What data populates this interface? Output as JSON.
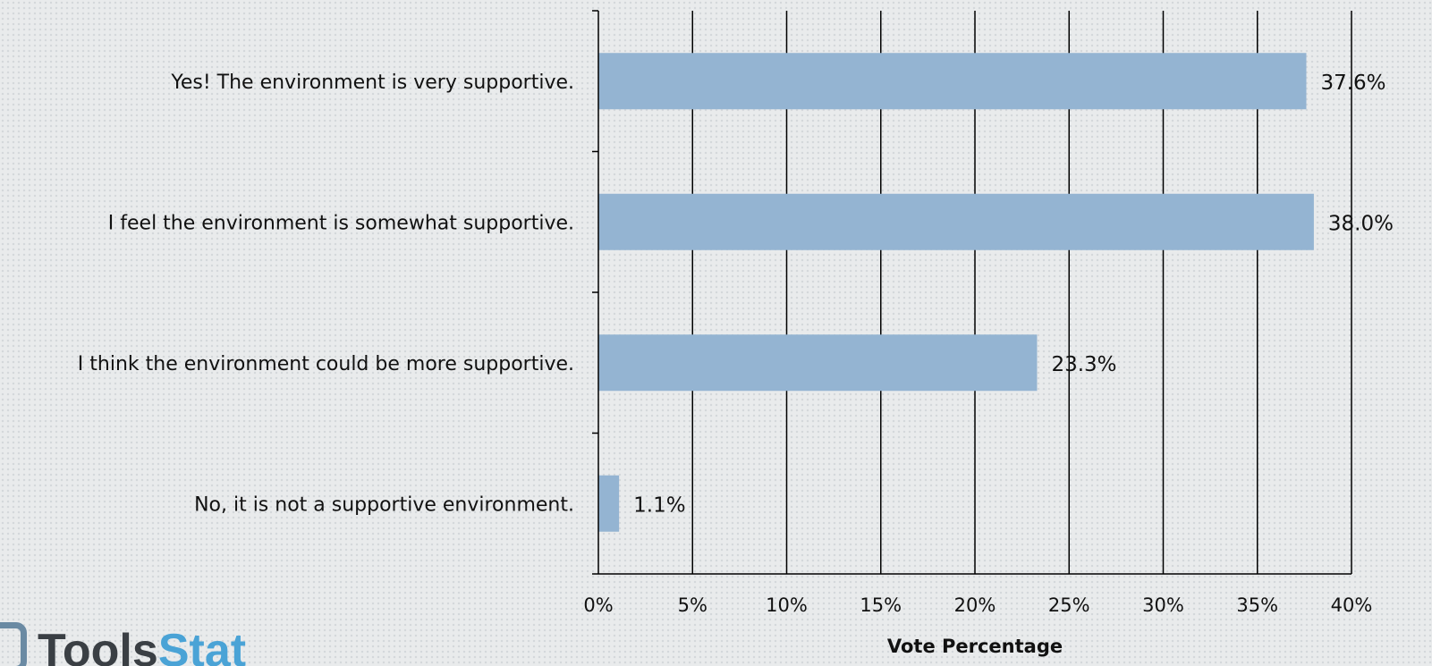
{
  "chart_data": {
    "type": "bar",
    "orientation": "horizontal",
    "categories": [
      "Yes! The environment is very supportive.",
      "I feel the environment is somewhat supportive.",
      "I think the environment could be more supportive.",
      "No, it is not a supportive environment."
    ],
    "values": [
      37.6,
      38.0,
      23.3,
      1.1
    ],
    "data_labels": [
      "37.6%",
      "38.0%",
      "23.3%",
      "1.1%"
    ],
    "xlabel": "Vote Percentage",
    "xlim": [
      0,
      40
    ],
    "xticks": [
      0,
      5,
      10,
      15,
      20,
      25,
      30,
      35,
      40
    ],
    "xtick_labels": [
      "0%",
      "5%",
      "10%",
      "15%",
      "20%",
      "25%",
      "30%",
      "35%",
      "40%"
    ],
    "grid": "vertical",
    "bar_color": "#94b4d2"
  },
  "logo": {
    "text_main": "Tools",
    "text_accent": "Stat"
  }
}
